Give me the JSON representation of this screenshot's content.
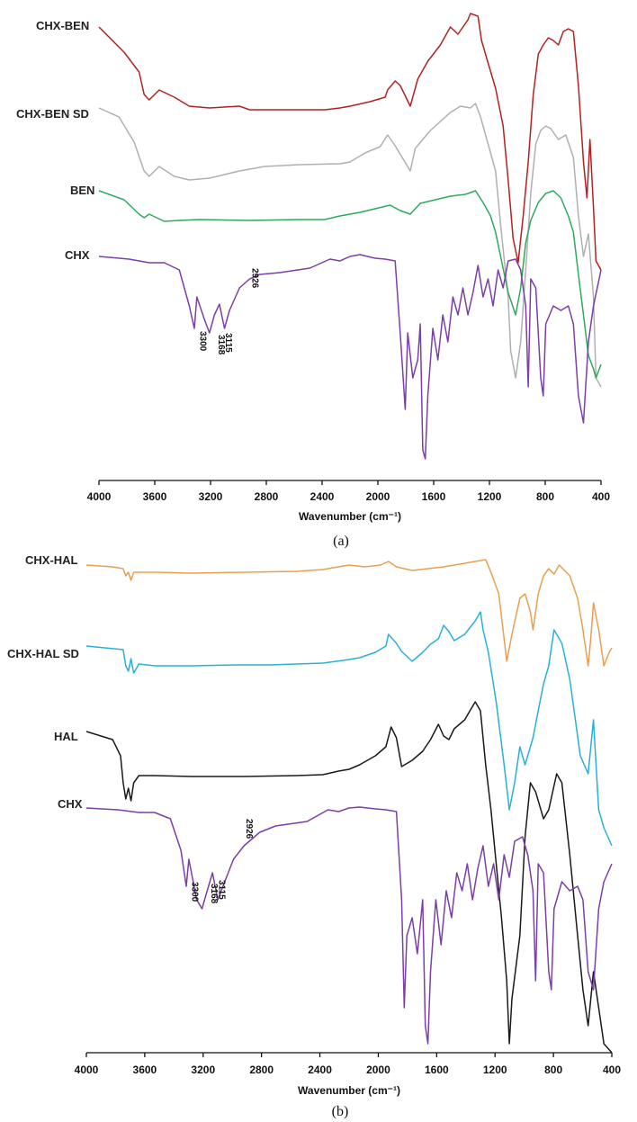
{
  "chart_data": [
    {
      "type": "line",
      "panel": "a",
      "panel_label": "(a)",
      "xlabel": "Wavenumber (cm⁻¹)",
      "ylabel": "",
      "xlim": [
        4000,
        400
      ],
      "x_reversed": true,
      "xticks": [
        "4000",
        "3600",
        "3200",
        "2800",
        "2400",
        "2000",
        "1600",
        "1200",
        "800",
        "400"
      ],
      "series": [
        {
          "name": "CHX-BEN",
          "color": "#b22222"
        },
        {
          "name": "CHX-BEN SD",
          "color": "#b0b0b0"
        },
        {
          "name": "BEN",
          "color": "#2eaa5c"
        },
        {
          "name": "CHX",
          "color": "#7b3fa8"
        }
      ],
      "annotations": [
        "3300",
        "3168",
        "3115",
        "2926"
      ]
    },
    {
      "type": "line",
      "panel": "b",
      "panel_label": "(b)",
      "xlabel": "Wavenumber (cm⁻¹)",
      "ylabel": "",
      "xlim": [
        4000,
        400
      ],
      "x_reversed": true,
      "xticks": [
        "4000",
        "3600",
        "3200",
        "2800",
        "2400",
        "2000",
        "1600",
        "1200",
        "800",
        "400"
      ],
      "series": [
        {
          "name": "CHX-HAL",
          "color": "#e8a050"
        },
        {
          "name": "CHX-HAL SD",
          "color": "#29b0d8"
        },
        {
          "name": "HAL",
          "color": "#1a1a1a"
        },
        {
          "name": "CHX",
          "color": "#7b3fa8"
        }
      ],
      "annotations": [
        "3300",
        "3168",
        "3115",
        "2926"
      ]
    }
  ]
}
